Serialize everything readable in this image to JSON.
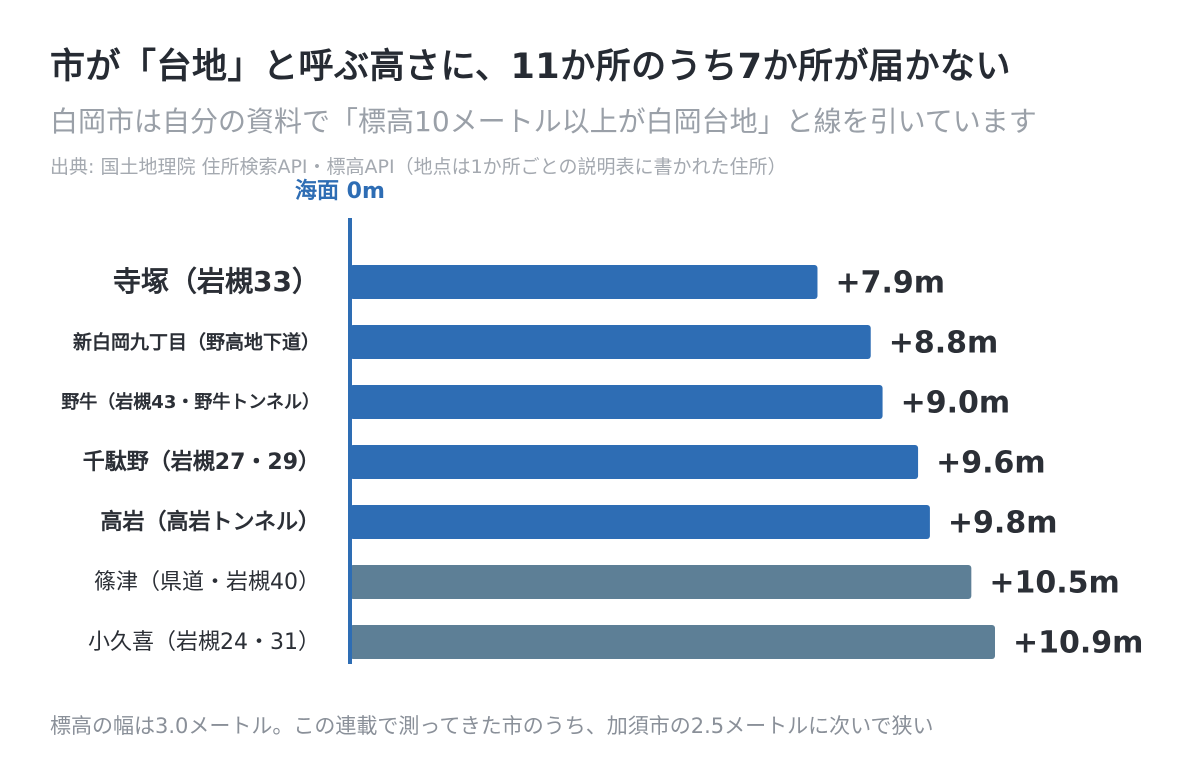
{
  "header": {
    "title": "市が「台地」と呼ぶ高さに、11か所のうち7か所が届かない",
    "subtitle": "白岡市は自分の資料で「標高10メートル以上が白岡台地」と線を引いています",
    "source": "出典: 国土地理院 住所検索API・標高API（地点は1か所ごとの説明表に書かれた住所）"
  },
  "footnote": "標高の幅は3.0メートル。この連載で測ってきた市のうち、加須市の2.5メートルに次いで狭い",
  "colors": {
    "below_threshold": "#2e6db4",
    "above_threshold": "#5d7f96",
    "axis": "#2e6db4",
    "label": "#2b2f36"
  },
  "chart_data": {
    "type": "bar",
    "orientation": "horizontal",
    "baseline_label": "海面 0m",
    "unit": "m",
    "categories": [
      "寺塚（岩槻33）",
      "新白岡九丁目（野高地下道）",
      "野牛（岩槻43・野牛トンネル）",
      "千駄野（岩槻27・29）",
      "高岩（高岩トンネル）",
      "篠津（県道・岩槻40）",
      "小久喜（岩槻24・31）"
    ],
    "values": [
      7.9,
      8.8,
      9.0,
      9.6,
      9.8,
      10.5,
      10.9
    ],
    "value_labels": [
      "+7.9m",
      "+8.8m",
      "+9.0m",
      "+9.6m",
      "+9.8m",
      "+10.5m",
      "+10.9m"
    ],
    "threshold": 10,
    "xlim": [
      0,
      10.9
    ]
  }
}
